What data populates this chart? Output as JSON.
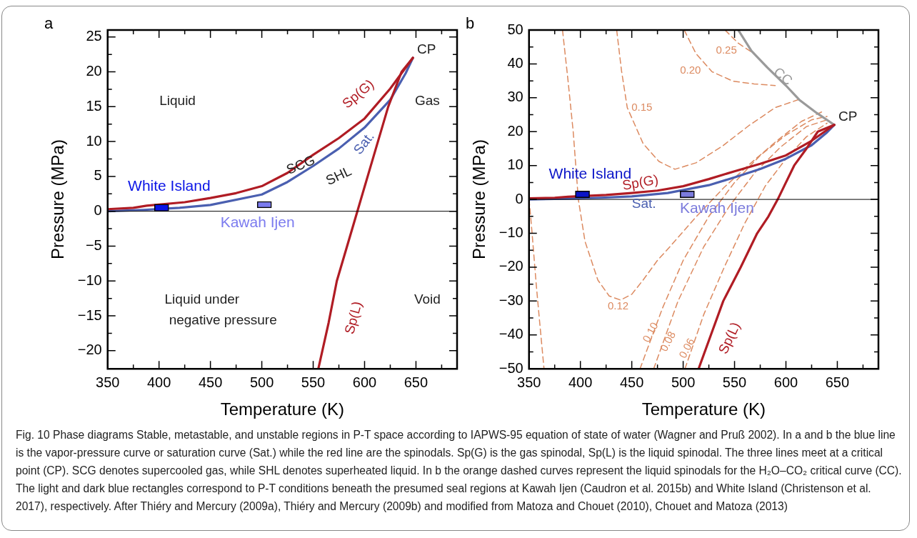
{
  "chart_data": [
    {
      "type": "line",
      "title": "a",
      "xlabel": "Temperature (K)",
      "ylabel": "Pressure (MPa)",
      "marker": "none",
      "xlim": [
        350,
        690
      ],
      "xticks": [
        350,
        {
          "value": 375,
          "label": null
        },
        400,
        {
          "value": 425,
          "label": null
        },
        450,
        {
          "value": 475,
          "label": null
        },
        500,
        {
          "value": 525,
          "label": null
        },
        550,
        {
          "value": 575,
          "label": null
        },
        600,
        {
          "value": 625,
          "label": null
        },
        650,
        {
          "value": 675,
          "label": null
        }
      ],
      "ylim": [
        -22.6,
        26
      ],
      "yticks": [
        -20,
        {
          "value": -17.5,
          "label": null
        },
        -15,
        {
          "value": -12.5,
          "label": null
        },
        -10,
        {
          "value": -7.5,
          "label": null
        },
        -5,
        {
          "value": -2.5,
          "label": null
        },
        0,
        {
          "value": 2.5,
          "label": null
        },
        5,
        {
          "value": 7.5,
          "label": null
        },
        10,
        {
          "value": 12.5,
          "label": null
        },
        15,
        {
          "value": 17.5,
          "label": null
        },
        20,
        {
          "value": 22.5,
          "label": null
        },
        25
      ],
      "ref_lines": [
        {
          "axis": "y",
          "value": 0,
          "color": "#000000"
        }
      ],
      "series": [
        {
          "name": "Sat.",
          "color": "#4a5fb0",
          "x": [
            350,
            385,
            420,
            450,
            500,
            525,
            550,
            575,
            600,
            625,
            640,
            647
          ],
          "values": [
            0,
            0.2,
            0.5,
            0.9,
            2.4,
            4.2,
            6.5,
            9,
            12,
            16,
            19.8,
            22
          ]
        },
        {
          "name": "Sp(G)",
          "color": "#b01c24",
          "x": [
            350,
            375,
            388,
            425,
            450,
            475,
            500,
            525,
            550,
            575,
            600,
            625,
            647
          ],
          "values": [
            0.3,
            0.5,
            0.8,
            1.3,
            1.9,
            2.6,
            3.6,
            5.5,
            8.1,
            10.5,
            13.3,
            17.6,
            22
          ]
        },
        {
          "name": "Sp(L)",
          "color": "#b01c24",
          "x": [
            555,
            565,
            573,
            583,
            593,
            603,
            613,
            623,
            636,
            647
          ],
          "values": [
            -22.6,
            -16,
            -10,
            -5,
            0,
            5,
            10,
            15,
            20,
            22
          ]
        },
        {
          "name": "White Island",
          "type": "bar",
          "color": "#0a14e6",
          "x": [
            402.5
          ],
          "values": [
            1
          ],
          "base": [
            0
          ]
        },
        {
          "name": "Kawah Ijen",
          "type": "bar",
          "color": "#7b7bef",
          "x": [
            502.5
          ],
          "values": [
            0.9
          ],
          "base": [
            0.5
          ]
        }
      ],
      "annotations": [
        "Liquid",
        "Gas",
        "Liquid under",
        "negative pressure",
        "Void",
        "SCG",
        "SHL",
        {
          "text": "CP",
          "x": 647,
          "y": 22
        }
      ]
    },
    {
      "type": "line",
      "title": "b",
      "xlabel": "Temperature (K)",
      "ylabel": "Pressure (MPa)",
      "marker": "none",
      "xlim": [
        350,
        690
      ],
      "xticks": [
        350,
        {
          "value": 375,
          "label": null
        },
        400,
        {
          "value": 425,
          "label": null
        },
        450,
        {
          "value": 475,
          "label": null
        },
        500,
        {
          "value": 525,
          "label": null
        },
        550,
        {
          "value": 575,
          "label": null
        },
        600,
        {
          "value": 625,
          "label": null
        },
        650,
        {
          "value": 675,
          "label": null
        }
      ],
      "ylim": [
        -50,
        50
      ],
      "yticks": [
        -50,
        {
          "value": -45,
          "label": null
        },
        -40,
        {
          "value": -35,
          "label": null
        },
        -30,
        {
          "value": -25,
          "label": null
        },
        -20,
        {
          "value": -15,
          "label": null
        },
        -10,
        {
          "value": -5,
          "label": null
        },
        0,
        {
          "value": 5,
          "label": null
        },
        10,
        {
          "value": 15,
          "label": null
        },
        20,
        {
          "value": 25,
          "label": null
        },
        30,
        {
          "value": 35,
          "label": null
        },
        40,
        {
          "value": 45,
          "label": null
        },
        50
      ],
      "ref_lines": [
        {
          "axis": "y",
          "value": 0,
          "color": "#000000"
        }
      ],
      "series": [
        {
          "color": "#dc8a60",
          "line_style": "dashed",
          "x": [
            350,
            351,
            353,
            357,
            360,
            364.6
          ],
          "values": [
            0,
            -3,
            -10,
            -25,
            -35,
            -50
          ]
        },
        {
          "name": "0.12",
          "color": "#dc8a60",
          "line_style": "dashed",
          "x": [
            382.6,
            388,
            393,
            398,
            404.5,
            417,
            428,
            439,
            450,
            461,
            475,
            487,
            500,
            513,
            540,
            565,
            590,
            615,
            636
          ],
          "values": [
            50,
            35,
            20,
            0,
            -12.4,
            -23.8,
            -28.5,
            -29.7,
            -28,
            -23.8,
            -18,
            -14,
            -9.5,
            -5,
            3.6,
            10.5,
            17,
            23,
            26
          ]
        },
        {
          "name": "0.15",
          "color": "#dc8a60",
          "line_style": "dashed",
          "x": [
            435.3,
            440,
            445.6,
            461,
            476.5,
            492,
            512.5,
            538,
            564,
            589.6,
            612.7
          ],
          "values": [
            50,
            38,
            27.1,
            16.5,
            11.2,
            8.9,
            10.8,
            15.7,
            21.8,
            27.1,
            29.5
          ]
        },
        {
          "name": "0.20",
          "color": "#dc8a60",
          "line_style": "dashed",
          "x": [
            501,
            512.5,
            528,
            548.5,
            569,
            589.6
          ],
          "values": [
            50,
            43,
            37.7,
            34.9,
            34.1,
            33.6
          ]
        },
        {
          "name": "0.25",
          "color": "#dc8a60",
          "line_style": "dashed",
          "x": [
            540.7,
            553.6,
            566.5
          ],
          "values": [
            50,
            46.1,
            43.5
          ]
        },
        {
          "name": "0.10",
          "color": "#dc8a60",
          "line_style": "dashed",
          "x": [
            458,
            480,
            500,
            525,
            550,
            575,
            600,
            625,
            640
          ],
          "values": [
            -50,
            -32,
            -18,
            -5,
            5,
            13,
            19,
            23.5,
            24.5
          ]
        },
        {
          "name": "0.08",
          "color": "#dc8a60",
          "line_style": "dashed",
          "x": [
            471.3,
            495,
            520,
            545,
            570,
            595,
            620,
            640
          ],
          "values": [
            -50,
            -30,
            -14,
            -2,
            8,
            15.5,
            21.5,
            23.5
          ]
        },
        {
          "name": "0.06",
          "color": "#dc8a60",
          "line_style": "dashed",
          "x": [
            501.7,
            520,
            540,
            560,
            580,
            600,
            620,
            640
          ],
          "values": [
            -50,
            -34,
            -20,
            -7,
            4,
            12,
            18.5,
            22.5
          ]
        },
        {
          "name": "CC",
          "color": "#9a9a9a",
          "x": [
            647,
            630,
            613,
            600,
            582,
            566.5,
            553.6
          ],
          "values": [
            22,
            25.5,
            29.4,
            33.6,
            38.9,
            43.8,
            50
          ]
        },
        {
          "name": "Sat.",
          "color": "#4a5fb0",
          "x": [
            350,
            385,
            420,
            450,
            485,
            525,
            550,
            575,
            600,
            625,
            640,
            647
          ],
          "values": [
            0,
            0.2,
            0.5,
            0.9,
            1.9,
            4.2,
            6.5,
            9,
            12,
            16,
            19.8,
            22
          ]
        },
        {
          "name": "Sp(G)",
          "color": "#b01c24",
          "x": [
            350,
            375,
            388,
            425,
            450,
            475,
            500,
            525,
            550,
            575,
            600,
            625,
            647
          ],
          "values": [
            0.3,
            0.5,
            0.8,
            1.3,
            1.9,
            2.6,
            3.9,
            6,
            8.3,
            10.5,
            13,
            17.3,
            22
          ]
        },
        {
          "name": "Sp(L)",
          "color": "#b01c24",
          "x": [
            515,
            527,
            539,
            556,
            572,
            583,
            592,
            600,
            608,
            620,
            631,
            647
          ],
          "values": [
            -50,
            -40,
            -30,
            -20,
            -10,
            -5,
            0,
            5,
            10,
            15,
            20,
            22
          ]
        },
        {
          "name": "White Island",
          "type": "bar",
          "color": "#0a14c8",
          "x": [
            402
          ],
          "values": [
            2
          ],
          "base": [
            0.5
          ]
        },
        {
          "name": "Kawah Ijen",
          "type": "bar",
          "color": "#7b7bdc",
          "x": [
            504
          ],
          "values": [
            2
          ],
          "base": [
            0.5
          ]
        }
      ],
      "annotations": [
        {
          "text": "CP",
          "x": 647,
          "y": 22
        },
        "Fig. 10  Phase diagrams Stable, metastable, and unstable regions in P-T space according to IAPWS-95 equation of state of water (Wagner and Pruß 2002). In a and b the blue line is the vapor-pressure curve or saturation curve (Sat.) while the red line are the spinodals. Sp(G) is the gas spinodal, Sp(L) is the liquid spinodal. The three lines meet at a critical point (CP). SCG denotes supercooled gas, while SHL denotes superheated liquid. In b the orange dashed curves represent the liquid spinodals for the H₂O–CO₂ critical curve (CC). The light and dark blue rectangles correspond to P-T conditions beneath the presumed seal regions at Kawah Ijen (Caudron et al. 2015b) and White Island (Christenson et al. 2017), respectively. After Thiéry and Mercury (2009a), Thiéry and Mercury (2009b) and modified from Matoza and Chouet (2010), Chouet and Matoza (2013)"
      ]
    }
  ]
}
